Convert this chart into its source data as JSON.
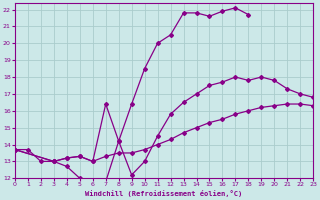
{
  "xlabel": "Windchill (Refroidissement éolien,°C)",
  "background_color": "#cce8e8",
  "grid_color": "#aacccc",
  "line_color": "#880088",
  "xmin": 0,
  "xmax": 23,
  "ymin": 12,
  "ymax": 22.4,
  "curve1_x": [
    0,
    1,
    2,
    3,
    4,
    5,
    6,
    7,
    8,
    9,
    10,
    11,
    12,
    13,
    14,
    15,
    16,
    17,
    18
  ],
  "curve1_y": [
    13.7,
    13.7,
    13.0,
    13.0,
    12.7,
    12.0,
    11.9,
    11.8,
    14.2,
    16.4,
    18.5,
    20.0,
    20.5,
    21.8,
    21.8,
    21.6,
    21.9,
    22.1,
    21.7
  ],
  "curve2_x": [
    0,
    3,
    4,
    5,
    6,
    7,
    8,
    9,
    10,
    11,
    12,
    13,
    14,
    15,
    16,
    17,
    18,
    19,
    20,
    21,
    22,
    23
  ],
  "curve2_y": [
    13.7,
    13.0,
    13.2,
    13.3,
    13.0,
    16.4,
    14.2,
    12.2,
    13.0,
    14.5,
    15.8,
    16.5,
    17.0,
    17.5,
    17.7,
    18.0,
    17.8,
    18.0,
    17.8,
    17.3,
    17.0,
    16.8
  ],
  "curve3_x": [
    0,
    3,
    4,
    5,
    6,
    7,
    8,
    9,
    10,
    11,
    12,
    13,
    14,
    15,
    16,
    17,
    18,
    19,
    20,
    21,
    22,
    23
  ],
  "curve3_y": [
    13.7,
    13.0,
    13.2,
    13.3,
    13.0,
    13.3,
    13.5,
    13.5,
    13.7,
    14.0,
    14.3,
    14.7,
    15.0,
    15.3,
    15.5,
    15.8,
    16.0,
    16.2,
    16.3,
    16.4,
    16.4,
    16.3
  ],
  "xticks": [
    0,
    1,
    2,
    3,
    4,
    5,
    6,
    7,
    8,
    9,
    10,
    11,
    12,
    13,
    14,
    15,
    16,
    17,
    18,
    19,
    20,
    21,
    22,
    23
  ],
  "yticks": [
    12,
    13,
    14,
    15,
    16,
    17,
    18,
    19,
    20,
    21,
    22
  ]
}
